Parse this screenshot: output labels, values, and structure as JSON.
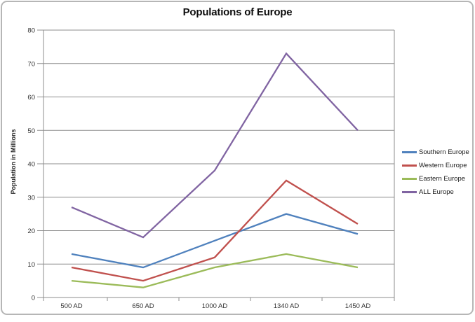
{
  "chart_data": {
    "type": "line",
    "title": "Populations of Europe",
    "ylabel": "Population in Millions",
    "xlabel": "",
    "categories": [
      "500 AD",
      "650 AD",
      "1000 AD",
      "1340 AD",
      "1450 AD"
    ],
    "series": [
      {
        "name": "Southern Europe",
        "color": "#4F81BD",
        "values": [
          13,
          9,
          17,
          25,
          19
        ]
      },
      {
        "name": "Western Europe",
        "color": "#C0504D",
        "values": [
          9,
          5,
          12,
          35,
          22
        ]
      },
      {
        "name": "Eastern Europe",
        "color": "#9BBB59",
        "values": [
          5,
          3,
          9,
          13,
          9
        ]
      },
      {
        "name": "ALL Europe",
        "color": "#8064A2",
        "values": [
          27,
          18,
          38,
          73,
          50
        ]
      }
    ],
    "ylim": [
      0,
      80
    ],
    "yticks": [
      0,
      10,
      20,
      30,
      40,
      50,
      60,
      70,
      80
    ],
    "grid": true,
    "legend_position": "right"
  },
  "colors": {
    "gridline": "#8c8c8c",
    "axis": "#8c8c8c",
    "tick_text": "#333333",
    "frame_border": "#b6b6b6",
    "background": "#ffffff"
  }
}
